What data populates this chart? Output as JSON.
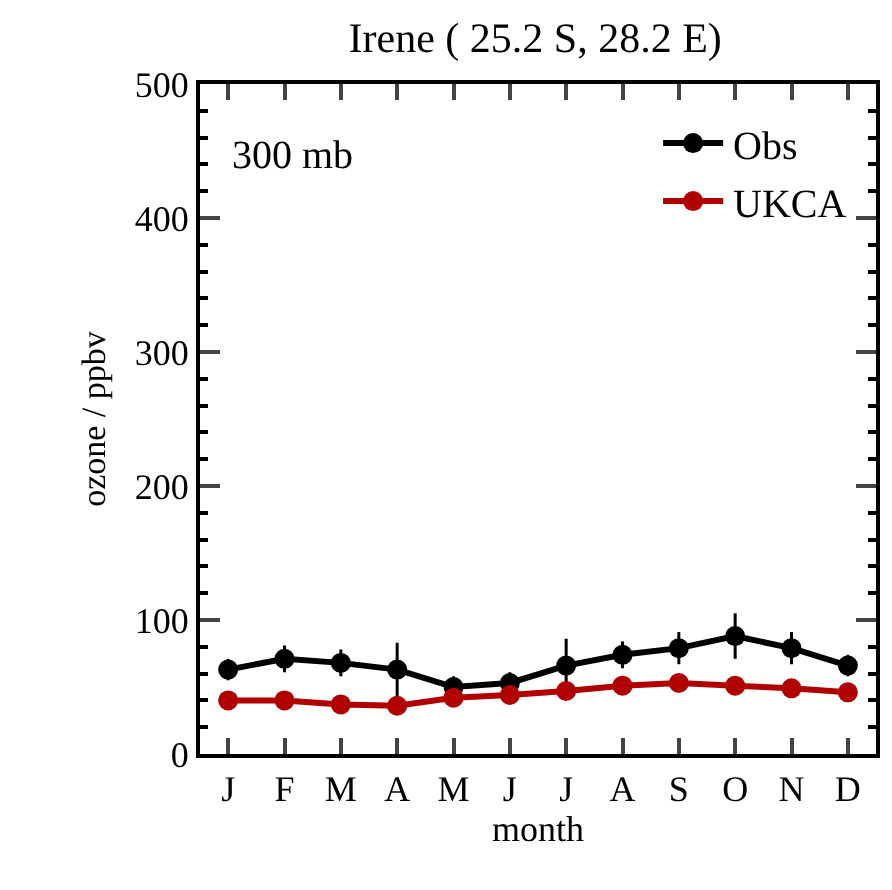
{
  "chart_data": {
    "type": "line",
    "title": "Irene ( 25.2 S, 28.2 E)",
    "xlabel": "month",
    "ylabel": "ozone / ppbv",
    "annotations": [
      "300 mb"
    ],
    "categories": [
      "J",
      "F",
      "M",
      "A",
      "M",
      "J",
      "J",
      "A",
      "S",
      "O",
      "N",
      "D"
    ],
    "series": [
      {
        "name": "Obs",
        "color": "#000000",
        "values": [
          63,
          71,
          68,
          63,
          50,
          53,
          66,
          74,
          79,
          88,
          79,
          66
        ],
        "errors": [
          8,
          10,
          10,
          20,
          8,
          8,
          20,
          10,
          12,
          17,
          12,
          8
        ]
      },
      {
        "name": "UKCA",
        "color": "#b00000",
        "values": [
          40,
          40,
          37,
          36,
          42,
          44,
          47,
          51,
          53,
          51,
          49,
          46
        ]
      }
    ],
    "ylim": [
      0,
      500
    ],
    "yticks": [
      0,
      100,
      200,
      300,
      400,
      500
    ],
    "grid": false,
    "legend": "top right",
    "marker": "circle",
    "line_style": "solid"
  }
}
